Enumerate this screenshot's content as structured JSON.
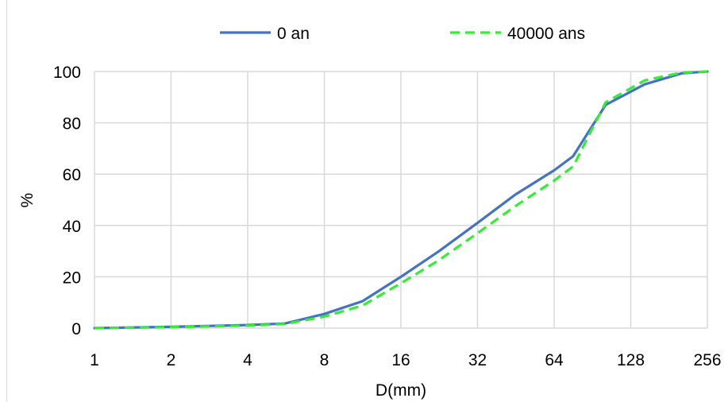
{
  "chart_data": {
    "type": "line",
    "x_scale": "log2",
    "x_ticks": [
      "1",
      "2",
      "4",
      "8",
      "16",
      "32",
      "64",
      "128",
      "256"
    ],
    "y_ticks": [
      "0",
      "20",
      "40",
      "60",
      "80",
      "100"
    ],
    "xlim": [
      1,
      256
    ],
    "ylim": [
      0,
      100
    ],
    "xlabel": "D(mm)",
    "ylabel": "%",
    "grid": true,
    "legend_position": "top",
    "series": [
      {
        "name": "0 an",
        "color": "#4472C4",
        "style": "solid",
        "points": [
          [
            1,
            0
          ],
          [
            2,
            0.5
          ],
          [
            4,
            1.2
          ],
          [
            5.6,
            1.8
          ],
          [
            8,
            5.5
          ],
          [
            11.3,
            10.5
          ],
          [
            16,
            20
          ],
          [
            22.6,
            30
          ],
          [
            32,
            41
          ],
          [
            45,
            52
          ],
          [
            64,
            61.5
          ],
          [
            76,
            67
          ],
          [
            102,
            87
          ],
          [
            145,
            95
          ],
          [
            203,
            99.3
          ],
          [
            256,
            100
          ]
        ]
      },
      {
        "name": "40000 ans",
        "color": "#33EE33",
        "style": "dashed",
        "points": [
          [
            1,
            0
          ],
          [
            2,
            0.4
          ],
          [
            4,
            1.0
          ],
          [
            5.6,
            1.6
          ],
          [
            8,
            4.5
          ],
          [
            11.3,
            8.8
          ],
          [
            16,
            17.5
          ],
          [
            22.6,
            26.5
          ],
          [
            32,
            37
          ],
          [
            45,
            47.5
          ],
          [
            64,
            57.5
          ],
          [
            76,
            63
          ],
          [
            102,
            88
          ],
          [
            145,
            96.5
          ],
          [
            203,
            99.6
          ],
          [
            256,
            100
          ]
        ]
      }
    ]
  }
}
